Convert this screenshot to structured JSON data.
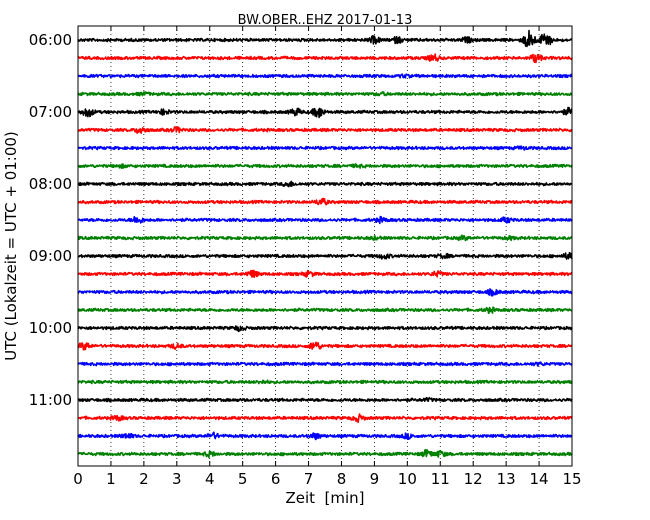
{
  "chart_data": {
    "type": "line",
    "title": "BW.OBER..EHZ 2017-01-13",
    "xlabel": "Zeit  [min]",
    "ylabel": "UTC (Lokalzeit = UTC + 01:00)",
    "xlim": [
      0,
      15
    ],
    "x_ticks": [
      0,
      1,
      2,
      3,
      4,
      5,
      6,
      7,
      8,
      9,
      10,
      11,
      12,
      13,
      14,
      15
    ],
    "y_tick_labels": [
      "06:00",
      "07:00",
      "08:00",
      "09:00",
      "10:00",
      "11:00"
    ],
    "grid": "vertical dotted",
    "line_colors": [
      "#000000",
      "#ff0000",
      "#0000ff",
      "#008000"
    ],
    "traces": [
      {
        "start": "06:00",
        "color": "#000000",
        "events": [
          [
            9.0,
            3
          ],
          [
            9.7,
            2.5
          ],
          [
            11.8,
            2
          ],
          [
            13.7,
            9
          ],
          [
            14.2,
            7
          ]
        ]
      },
      {
        "start": "06:15",
        "color": "#ff0000",
        "events": [
          [
            10.8,
            3
          ],
          [
            13.9,
            4
          ]
        ]
      },
      {
        "start": "06:30",
        "color": "#0000ff",
        "events": [
          [
            9.9,
            1
          ]
        ]
      },
      {
        "start": "06:45",
        "color": "#008000",
        "events": [
          [
            2.0,
            1
          ],
          [
            9.2,
            1
          ]
        ]
      },
      {
        "start": "07:00",
        "color": "#000000",
        "events": [
          [
            0.3,
            4
          ],
          [
            2.6,
            2
          ],
          [
            6.6,
            3
          ],
          [
            7.3,
            5
          ],
          [
            14.9,
            3
          ]
        ]
      },
      {
        "start": "07:15",
        "color": "#ff0000",
        "events": [
          [
            1.9,
            3
          ],
          [
            3.0,
            2
          ]
        ]
      },
      {
        "start": "07:30",
        "color": "#0000ff",
        "events": [
          [
            13.5,
            1
          ]
        ]
      },
      {
        "start": "07:45",
        "color": "#008000",
        "events": [
          [
            1.3,
            1
          ],
          [
            8.5,
            1
          ]
        ]
      },
      {
        "start": "08:00",
        "color": "#000000",
        "events": [
          [
            6.4,
            2
          ]
        ]
      },
      {
        "start": "08:15",
        "color": "#ff0000",
        "events": [
          [
            7.4,
            3
          ]
        ]
      },
      {
        "start": "08:30",
        "color": "#0000ff",
        "events": [
          [
            1.8,
            3
          ],
          [
            9.2,
            2
          ],
          [
            13.0,
            2
          ]
        ]
      },
      {
        "start": "08:45",
        "color": "#008000",
        "events": [
          [
            9.0,
            1
          ],
          [
            11.7,
            1.5
          ],
          [
            13.1,
            1
          ]
        ]
      },
      {
        "start": "09:00",
        "color": "#000000",
        "events": [
          [
            9.3,
            2
          ],
          [
            11.1,
            1.5
          ],
          [
            14.9,
            2.5
          ]
        ]
      },
      {
        "start": "09:15",
        "color": "#ff0000",
        "events": [
          [
            5.3,
            3
          ],
          [
            7.0,
            2
          ],
          [
            10.9,
            2
          ]
        ]
      },
      {
        "start": "09:30",
        "color": "#0000ff",
        "events": [
          [
            12.6,
            2.5
          ]
        ]
      },
      {
        "start": "09:45",
        "color": "#008000",
        "events": [
          [
            12.5,
            2
          ]
        ]
      },
      {
        "start": "10:00",
        "color": "#000000",
        "events": [
          [
            4.9,
            2
          ]
        ]
      },
      {
        "start": "10:15",
        "color": "#ff0000",
        "events": [
          [
            0.2,
            3
          ],
          [
            3.0,
            2
          ],
          [
            7.2,
            4
          ]
        ]
      },
      {
        "start": "10:30",
        "color": "#0000ff",
        "events": [
          [
            14.0,
            1
          ]
        ]
      },
      {
        "start": "10:45",
        "color": "#008000",
        "events": [
          [
            5.6,
            1
          ]
        ]
      },
      {
        "start": "11:00",
        "color": "#000000",
        "events": [
          [
            10.6,
            1
          ]
        ]
      },
      {
        "start": "11:15",
        "color": "#ff0000",
        "events": [
          [
            1.2,
            2
          ],
          [
            8.5,
            3
          ]
        ]
      },
      {
        "start": "11:30",
        "color": "#0000ff",
        "events": [
          [
            1.5,
            2
          ],
          [
            4.1,
            2.5
          ],
          [
            7.2,
            2.5
          ],
          [
            10.0,
            2
          ]
        ]
      },
      {
        "start": "11:45",
        "color": "#008000",
        "events": [
          [
            4.0,
            2
          ],
          [
            10.6,
            3
          ],
          [
            11.0,
            2.5
          ]
        ]
      }
    ]
  }
}
